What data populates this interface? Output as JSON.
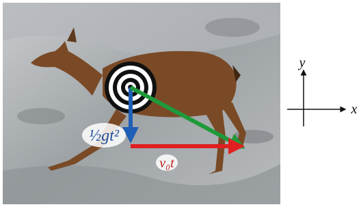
{
  "labels": {
    "drop": "½gt²",
    "travel": "v₀t"
  },
  "axes": {
    "x": "x",
    "y": "y"
  }
}
